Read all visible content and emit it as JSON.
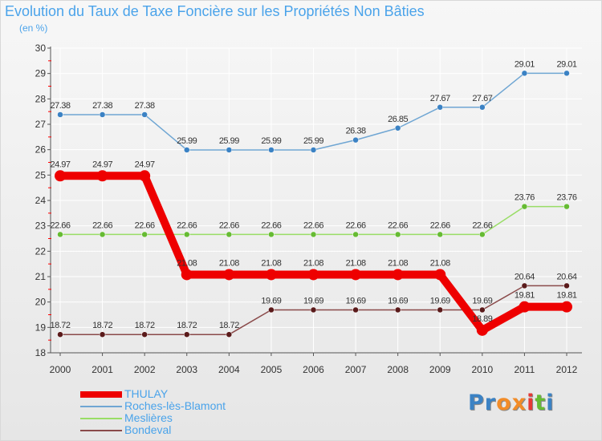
{
  "header": {
    "title": "Evolution du Taux de Taxe Foncière sur les Propriétés Non Bâties",
    "subtitle": "(en %)"
  },
  "colors": {
    "title": "#4aa3ea",
    "grid": "#ffffff",
    "axis": "#555555",
    "tick_marks": "#ff0000"
  },
  "chart_data": {
    "type": "line",
    "title": "Evolution du Taux de Taxe Foncière sur les Propriétés Non Bâties",
    "ylabel": "(en %)",
    "xlabel": "",
    "ylim": [
      18,
      30
    ],
    "yticks": [
      18,
      19,
      20,
      21,
      22,
      23,
      24,
      25,
      26,
      27,
      28,
      29,
      30
    ],
    "grid": true,
    "legend_position": "bottom-left",
    "x": [
      "2000",
      "2001",
      "2002",
      "2003",
      "2004",
      "2005",
      "2006",
      "2007",
      "2008",
      "2009",
      "2010",
      "2011",
      "2012"
    ],
    "series": [
      {
        "name": "Roches-lès-Blamont",
        "color": "#6fa6d3",
        "marker": "#3b82c4",
        "emphasis": false,
        "values": [
          27.38,
          27.38,
          27.38,
          25.99,
          25.99,
          25.99,
          25.99,
          26.38,
          26.85,
          27.67,
          27.67,
          29.01,
          29.01
        ],
        "labels": [
          "27.38",
          "27.38",
          "27.38",
          "25.99",
          "25.99",
          "25.99",
          "25.99",
          "26.38",
          "26.85",
          "27.67",
          "27.67",
          "29.01",
          "29.01"
        ]
      },
      {
        "name": "Meslières",
        "color": "#99dd66",
        "marker": "#66bb33",
        "emphasis": false,
        "values": [
          22.66,
          22.66,
          22.66,
          22.66,
          22.66,
          22.66,
          22.66,
          22.66,
          22.66,
          22.66,
          22.66,
          23.76,
          23.76
        ],
        "labels": [
          "22.66",
          "22.66",
          "22.66",
          "22.66",
          "22.66",
          "22.66",
          "22.66",
          "22.66",
          "22.66",
          "22.66",
          "22.66",
          "23.76",
          "23.76"
        ]
      },
      {
        "name": "Bondeval",
        "color": "#8a4a4a",
        "marker": "#5a1a1a",
        "emphasis": false,
        "values": [
          18.72,
          18.72,
          18.72,
          18.72,
          18.72,
          19.69,
          19.69,
          19.69,
          19.69,
          19.69,
          19.69,
          20.64,
          20.64
        ],
        "labels": [
          "18.72",
          "18.72",
          "18.72",
          "18.72",
          "18.72",
          "19.69",
          "19.69",
          "19.69",
          "19.69",
          "19.69",
          "19.69",
          "20.64",
          "20.64"
        ]
      },
      {
        "name": "THULAY",
        "color": "#ee0000",
        "marker": "#ee0000",
        "emphasis": true,
        "values": [
          24.97,
          24.97,
          24.97,
          21.08,
          21.08,
          21.08,
          21.08,
          21.08,
          21.08,
          21.08,
          18.89,
          19.81,
          19.81
        ],
        "labels": [
          "24.97",
          "24.97",
          "24.97",
          "21.08",
          "21.08",
          "21.08",
          "21.08",
          "21.08",
          "21.08",
          "21.08",
          "18.89",
          "19.81",
          "19.81"
        ]
      }
    ]
  },
  "legend": {
    "items": [
      {
        "label": "THULAY",
        "color": "#ee0000",
        "thick": true
      },
      {
        "label": "Roches-lès-Blamont",
        "color": "#6fa6d3",
        "thick": false
      },
      {
        "label": "Meslières",
        "color": "#99dd66",
        "thick": false
      },
      {
        "label": "Bondeval",
        "color": "#8a4a4a",
        "thick": false
      }
    ]
  },
  "logo": {
    "text": "Proxiti",
    "letter_colors": [
      "#3b82c4",
      "#3b82c4",
      "#f28c28",
      "#f28c28",
      "#e53935",
      "#66bb33",
      "#3b82c4"
    ]
  }
}
